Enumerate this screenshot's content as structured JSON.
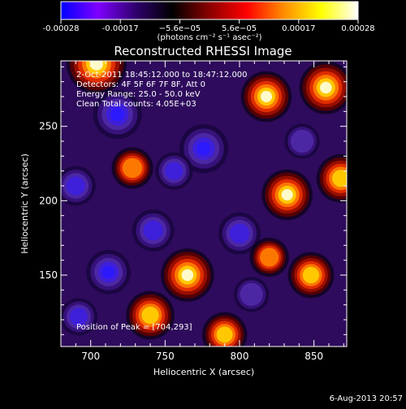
{
  "colorbar": {
    "tick_labels": [
      "-0.00028",
      "-0.00017",
      "−5.6e−05",
      "5.6e−05",
      "0.00017",
      "0.00028"
    ],
    "unit_label": "(photons cm⁻² s⁻¹ asec⁻²)",
    "colors": [
      "#0000ff",
      "#7f00ff",
      "#300070",
      "#000000",
      "#8b0000",
      "#ff0000",
      "#ff8c00",
      "#ffff00",
      "#ffffff"
    ]
  },
  "chart_data": {
    "type": "heatmap",
    "title": "Reconstructed RHESSI Image",
    "xlabel": "Heliocentric X (arcsec)",
    "ylabel": "Heliocentric Y (arcsec)",
    "xlim": [
      680,
      872
    ],
    "ylim": [
      102,
      294
    ],
    "x_ticks": [
      700,
      750,
      800,
      850
    ],
    "y_ticks": [
      150,
      200,
      250
    ],
    "zlim": [
      -0.00028,
      0.00028
    ],
    "peak": [
      704,
      293
    ],
    "annotations": [
      "2-Oct-2011 18:45:12.000 to 18:47:12.000",
      "Detectors: 4F 5F 6F 7F 8F, Att 0",
      "Energy Range: 25.0 - 50.0 keV",
      "Clean     Total counts: 4.05E+03"
    ],
    "peak_label": "Position of Peak = [704,293]",
    "bright_sources": [
      {
        "x": 704,
        "y": 292,
        "intensity": 0.00028
      },
      {
        "x": 818,
        "y": 270,
        "intensity": 0.0002
      },
      {
        "x": 858,
        "y": 276,
        "intensity": 0.00022
      },
      {
        "x": 832,
        "y": 204,
        "intensity": 0.0002
      },
      {
        "x": 868,
        "y": 215,
        "intensity": 0.00018
      },
      {
        "x": 765,
        "y": 150,
        "intensity": 0.00022
      },
      {
        "x": 740,
        "y": 123,
        "intensity": 0.00018
      },
      {
        "x": 790,
        "y": 110,
        "intensity": 0.00015
      },
      {
        "x": 848,
        "y": 150,
        "intensity": 0.00016
      },
      {
        "x": 728,
        "y": 222,
        "intensity": 0.00012
      },
      {
        "x": 820,
        "y": 162,
        "intensity": 0.0001
      }
    ],
    "dim_sources": [
      {
        "x": 718,
        "y": 258,
        "intensity": -0.00024
      },
      {
        "x": 776,
        "y": 235,
        "intensity": -0.00024
      },
      {
        "x": 742,
        "y": 180,
        "intensity": -0.00018
      },
      {
        "x": 712,
        "y": 152,
        "intensity": -0.0002
      },
      {
        "x": 690,
        "y": 210,
        "intensity": -0.00016
      },
      {
        "x": 800,
        "y": 178,
        "intensity": -0.00018
      },
      {
        "x": 756,
        "y": 220,
        "intensity": -0.00014
      },
      {
        "x": 842,
        "y": 240,
        "intensity": -0.00012
      },
      {
        "x": 692,
        "y": 122,
        "intensity": -0.00014
      },
      {
        "x": 808,
        "y": 137,
        "intensity": -0.00012
      }
    ]
  },
  "footer": {
    "date": "6-Aug-2013 20:57"
  }
}
